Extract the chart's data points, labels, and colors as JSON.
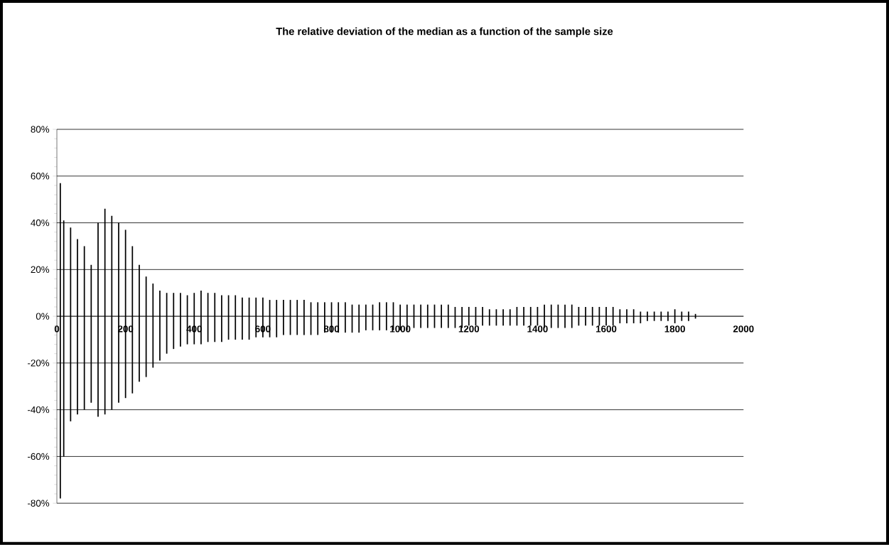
{
  "chart_data": {
    "type": "bar",
    "title": "The relative deviation of the median as a function of the sample size",
    "x": [
      10,
      20,
      40,
      60,
      80,
      100,
      120,
      140,
      160,
      180,
      200,
      220,
      240,
      260,
      280,
      300,
      320,
      340,
      360,
      380,
      400,
      420,
      440,
      460,
      480,
      500,
      520,
      540,
      560,
      580,
      600,
      620,
      640,
      660,
      680,
      700,
      720,
      740,
      760,
      780,
      800,
      820,
      840,
      860,
      880,
      900,
      920,
      940,
      960,
      980,
      1000,
      1020,
      1040,
      1060,
      1080,
      1100,
      1120,
      1140,
      1160,
      1180,
      1200,
      1220,
      1240,
      1260,
      1280,
      1300,
      1320,
      1340,
      1360,
      1380,
      1400,
      1420,
      1440,
      1460,
      1480,
      1500,
      1520,
      1540,
      1560,
      1580,
      1600,
      1620,
      1640,
      1660,
      1680,
      1700,
      1720,
      1740,
      1760,
      1780,
      1800,
      1820,
      1840,
      1860
    ],
    "base": [
      -78,
      -60,
      -45,
      -42,
      -40,
      -37,
      -43,
      -42,
      -40,
      -37,
      -35,
      -33,
      -28,
      -26,
      -22,
      -19,
      -16,
      -14,
      -13,
      -12,
      -12,
      -12,
      -11,
      -11,
      -11,
      -10,
      -10,
      -10,
      -10,
      -9,
      -9,
      -9,
      -9,
      -8,
      -8,
      -8,
      -8,
      -8,
      -8,
      -7,
      -7,
      -7,
      -7,
      -7,
      -7,
      -6,
      -6,
      -6,
      -6,
      -6,
      -6,
      -6,
      -5,
      -5,
      -5,
      -5,
      -5,
      -5,
      -5,
      -5,
      -4,
      -4,
      -4,
      -4,
      -4,
      -4,
      -4,
      -4,
      -4,
      -4,
      -4,
      -5,
      -5,
      -5,
      -5,
      -5,
      -4,
      -4,
      -4,
      -4,
      -4,
      -4,
      -3,
      -3,
      -3,
      -3,
      -2,
      -2,
      -2,
      -2,
      -3,
      -2,
      -2,
      -1
    ],
    "values": [
      135,
      101,
      83,
      75,
      70,
      59,
      83,
      88,
      83,
      77,
      72,
      63,
      50,
      43,
      36,
      30,
      26,
      24,
      23,
      21,
      22,
      23,
      21,
      21,
      20,
      19,
      19,
      18,
      18,
      17,
      17,
      16,
      16,
      15,
      15,
      15,
      15,
      14,
      14,
      13,
      13,
      13,
      13,
      12,
      12,
      11,
      11,
      12,
      12,
      12,
      11,
      11,
      10,
      10,
      10,
      10,
      10,
      10,
      9,
      9,
      8,
      8,
      8,
      7,
      7,
      7,
      7,
      8,
      8,
      8,
      8,
      10,
      10,
      10,
      10,
      10,
      8,
      8,
      8,
      8,
      8,
      8,
      6,
      6,
      6,
      5,
      4,
      4,
      4,
      4,
      6,
      4,
      4,
      2
    ],
    "color": "#000000",
    "xlim": [
      0,
      2000
    ],
    "xticks": [
      0,
      200,
      400,
      600,
      800,
      1000,
      1200,
      1400,
      1600,
      1800,
      2000
    ],
    "ylim": [
      -80,
      80
    ],
    "yticks": [
      {
        "value": -80,
        "label": "-80%"
      },
      {
        "value": -60,
        "label": "-60%"
      },
      {
        "value": -40,
        "label": "-40%"
      },
      {
        "value": -20,
        "label": "-20%"
      },
      {
        "value": 0,
        "label": "0%"
      },
      {
        "value": 20,
        "label": "20%"
      },
      {
        "value": 40,
        "label": "40%"
      },
      {
        "value": 60,
        "label": "60%"
      },
      {
        "value": 80,
        "label": "80%"
      }
    ],
    "grid": "y"
  }
}
